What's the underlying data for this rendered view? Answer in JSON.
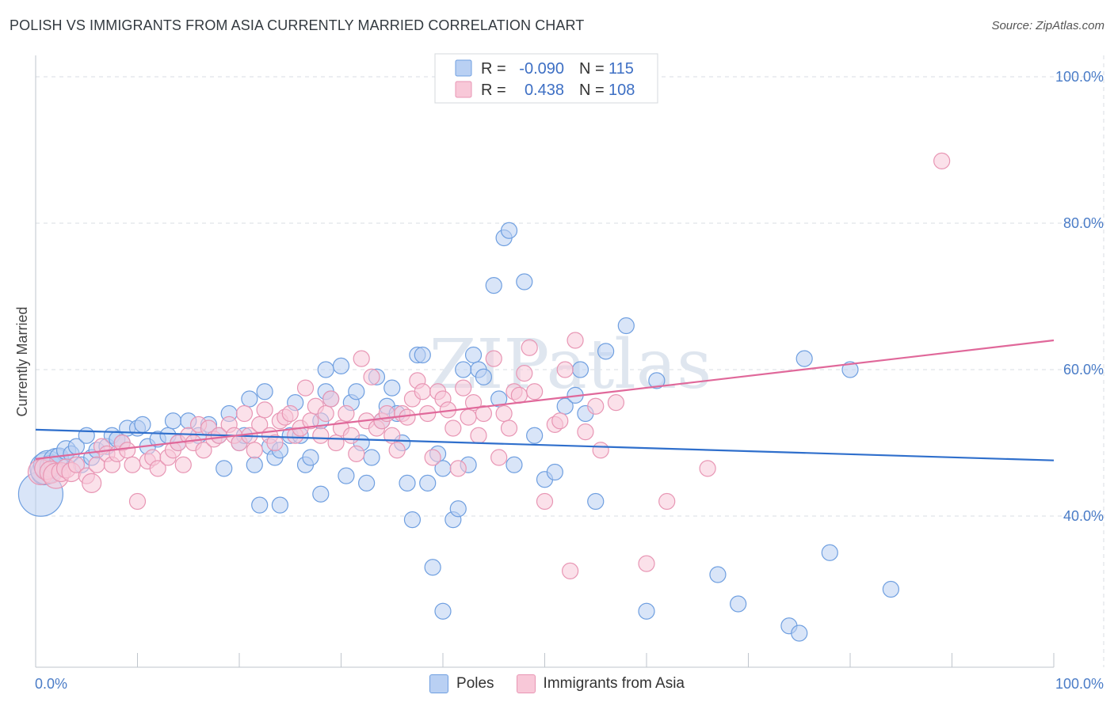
{
  "title": "POLISH VS IMMIGRANTS FROM ASIA CURRENTLY MARRIED CORRELATION CHART",
  "source": "Source: ZipAtlas.com",
  "watermark": "ZIPatlas",
  "chart_data": {
    "type": "scatter",
    "xlabel": "",
    "ylabel": "Currently Married",
    "xlim": [
      0,
      100
    ],
    "ylim": [
      22,
      100
    ],
    "x_tick_labels": [
      "0.0%",
      "100.0%"
    ],
    "y_ticks": [
      40,
      60,
      80,
      100
    ],
    "y_tick_labels": [
      "40.0%",
      "60.0%",
      "80.0%",
      "100.0%"
    ],
    "grid": true,
    "legend_stats": [
      {
        "r_label": "R =",
        "r": "-0.090",
        "n_label": "N =",
        "n": "115",
        "color": "#6f9fe0",
        "fill": "#b9d0f3"
      },
      {
        "r_label": "R =",
        "r": "0.438",
        "n_label": "N =",
        "n": "108",
        "color": "#e896b4",
        "fill": "#f8c8d8"
      }
    ],
    "series": [
      {
        "name": "Poles",
        "color": "#6f9fe0",
        "fill": "#b9d0f3",
        "trend": {
          "x": [
            0,
            100
          ],
          "y": [
            51.8,
            47.6
          ],
          "color": "#2f6fcc"
        },
        "points": [
          [
            0.5,
            43,
            28
          ],
          [
            0.8,
            46,
            16
          ],
          [
            1,
            46.5,
            20
          ],
          [
            1.2,
            47,
            18
          ],
          [
            1.5,
            46.8,
            14
          ],
          [
            2,
            47.5,
            16
          ],
          [
            2.3,
            48,
            12
          ],
          [
            3,
            49,
            12
          ],
          [
            3.5,
            48.5,
            10
          ],
          [
            4,
            49.5,
            10
          ],
          [
            4.5,
            47,
            10
          ],
          [
            5,
            51,
            10
          ],
          [
            5.5,
            48,
            10
          ],
          [
            6,
            49,
            10
          ],
          [
            7,
            49.5,
            10
          ],
          [
            7.5,
            51,
            10
          ],
          [
            8,
            50.5,
            10
          ],
          [
            8.5,
            50,
            10
          ],
          [
            9,
            52,
            10
          ],
          [
            10,
            52,
            10
          ],
          [
            10.5,
            52.5,
            10
          ],
          [
            11,
            49.5,
            10
          ],
          [
            12,
            50.5,
            10
          ],
          [
            13,
            51,
            10
          ],
          [
            13.5,
            53,
            10
          ],
          [
            14,
            50,
            10
          ],
          [
            15,
            53,
            10
          ],
          [
            16,
            51,
            10
          ],
          [
            17,
            52.5,
            10
          ],
          [
            18,
            51,
            10
          ],
          [
            18.5,
            46.5,
            10
          ],
          [
            19,
            54,
            10
          ],
          [
            20,
            50,
            10
          ],
          [
            20.5,
            51,
            10
          ],
          [
            21,
            56,
            10
          ],
          [
            21.5,
            47,
            10
          ],
          [
            22,
            41.5,
            10
          ],
          [
            22.5,
            57,
            10
          ],
          [
            23,
            49.5,
            10
          ],
          [
            23.5,
            48,
            10
          ],
          [
            24,
            41.5,
            10
          ],
          [
            24,
            49,
            10
          ],
          [
            25,
            51,
            10
          ],
          [
            25.5,
            55.5,
            10
          ],
          [
            26,
            51,
            10
          ],
          [
            26.5,
            47,
            10
          ],
          [
            27,
            48,
            10
          ],
          [
            28,
            43,
            10
          ],
          [
            28,
            53,
            10
          ],
          [
            28.5,
            57,
            10
          ],
          [
            29,
            56,
            10
          ],
          [
            28.5,
            60,
            10
          ],
          [
            30,
            60.5,
            10
          ],
          [
            30.5,
            45.5,
            10
          ],
          [
            31,
            55.5,
            10
          ],
          [
            31.5,
            57,
            10
          ],
          [
            32,
            50,
            10
          ],
          [
            32.5,
            44.5,
            10
          ],
          [
            33,
            48,
            10
          ],
          [
            33.5,
            59,
            10
          ],
          [
            34,
            53,
            10
          ],
          [
            34.5,
            55,
            10
          ],
          [
            35,
            57.5,
            10
          ],
          [
            35.5,
            54,
            10
          ],
          [
            36,
            50,
            10
          ],
          [
            36.5,
            44.5,
            10
          ],
          [
            37,
            39.5,
            10
          ],
          [
            37.5,
            62,
            10
          ],
          [
            38,
            62,
            10
          ],
          [
            38.5,
            44.5,
            10
          ],
          [
            39,
            33,
            10
          ],
          [
            39.5,
            48.5,
            10
          ],
          [
            40,
            46.5,
            10
          ],
          [
            40,
            27,
            10
          ],
          [
            41,
            39.5,
            10
          ],
          [
            41.5,
            41,
            10
          ],
          [
            42,
            60,
            10
          ],
          [
            42.5,
            47,
            10
          ],
          [
            43,
            62,
            10
          ],
          [
            43.5,
            60,
            10
          ],
          [
            44,
            59,
            10
          ],
          [
            45,
            71.5,
            10
          ],
          [
            45.5,
            56,
            10
          ],
          [
            46,
            78,
            10
          ],
          [
            46.5,
            79,
            10
          ],
          [
            47,
            47,
            10
          ],
          [
            48,
            72,
            10
          ],
          [
            49,
            51,
            10
          ],
          [
            50,
            45,
            10
          ],
          [
            51,
            46,
            10
          ],
          [
            52,
            55,
            10
          ],
          [
            53,
            56.5,
            10
          ],
          [
            53.5,
            60,
            10
          ],
          [
            54,
            54,
            10
          ],
          [
            55,
            42,
            10
          ],
          [
            56,
            62.5,
            10
          ],
          [
            58,
            66,
            10
          ],
          [
            60,
            27,
            10
          ],
          [
            61,
            58.5,
            10
          ],
          [
            67,
            32,
            10
          ],
          [
            69,
            28,
            10
          ],
          [
            74,
            25,
            10
          ],
          [
            75,
            24,
            10
          ],
          [
            75.5,
            61.5,
            10
          ],
          [
            78,
            35,
            10
          ],
          [
            80,
            60,
            10
          ],
          [
            84,
            30,
            10
          ]
        ]
      },
      {
        "name": "Immigrants from Asia",
        "color": "#e896b4",
        "fill": "#f8c8d8",
        "trend": {
          "x": [
            0,
            100
          ],
          "y": [
            47.8,
            64
          ],
          "color": "#e0689a"
        },
        "points": [
          [
            0.5,
            46,
            16
          ],
          [
            1,
            46.5,
            14
          ],
          [
            1.5,
            46,
            14
          ],
          [
            2,
            45.5,
            16
          ],
          [
            2.5,
            46,
            12
          ],
          [
            3,
            46.5,
            12
          ],
          [
            3.5,
            46,
            12
          ],
          [
            4,
            47,
            10
          ],
          [
            5,
            45.5,
            10
          ],
          [
            5.5,
            44.5,
            12
          ],
          [
            6,
            47,
            10
          ],
          [
            6.5,
            49.5,
            10
          ],
          [
            7,
            48.5,
            10
          ],
          [
            7.5,
            47,
            10
          ],
          [
            8,
            48.5,
            10
          ],
          [
            8.5,
            50,
            10
          ],
          [
            9,
            49,
            10
          ],
          [
            9.5,
            47,
            10
          ],
          [
            10,
            42,
            10
          ],
          [
            11,
            47.5,
            10
          ],
          [
            11.5,
            48,
            10
          ],
          [
            12,
            46.5,
            10
          ],
          [
            13,
            48,
            10
          ],
          [
            13.5,
            49,
            10
          ],
          [
            14,
            50,
            10
          ],
          [
            14.5,
            47,
            10
          ],
          [
            15,
            51,
            10
          ],
          [
            15.5,
            50,
            10
          ],
          [
            16,
            52.5,
            10
          ],
          [
            16.5,
            49,
            10
          ],
          [
            17,
            52,
            10
          ],
          [
            17.5,
            50.5,
            10
          ],
          [
            18,
            51,
            10
          ],
          [
            19,
            52.5,
            10
          ],
          [
            19.5,
            51,
            10
          ],
          [
            20,
            50,
            10
          ],
          [
            20.5,
            54,
            10
          ],
          [
            21,
            51,
            10
          ],
          [
            21.5,
            49,
            10
          ],
          [
            22,
            52.5,
            10
          ],
          [
            22.5,
            54.5,
            10
          ],
          [
            23,
            51,
            10
          ],
          [
            23.5,
            50,
            10
          ],
          [
            24,
            53,
            10
          ],
          [
            24.5,
            53.5,
            10
          ],
          [
            25,
            54,
            10
          ],
          [
            25.5,
            51,
            10
          ],
          [
            26,
            52,
            10
          ],
          [
            26.5,
            57.5,
            10
          ],
          [
            27,
            53,
            10
          ],
          [
            27.5,
            55,
            10
          ],
          [
            28,
            51,
            10
          ],
          [
            28.5,
            54,
            10
          ],
          [
            29,
            56,
            10
          ],
          [
            29.5,
            50,
            10
          ],
          [
            30,
            52,
            10
          ],
          [
            30.5,
            54,
            10
          ],
          [
            31,
            51,
            10
          ],
          [
            31.5,
            48.5,
            10
          ],
          [
            32,
            61.5,
            10
          ],
          [
            32.5,
            53,
            10
          ],
          [
            33,
            59,
            10
          ],
          [
            33.5,
            52,
            10
          ],
          [
            34,
            53,
            10
          ],
          [
            34.5,
            54,
            10
          ],
          [
            35,
            51,
            10
          ],
          [
            35.5,
            49,
            10
          ],
          [
            36,
            54,
            10
          ],
          [
            36.5,
            53.5,
            10
          ],
          [
            37,
            56,
            10
          ],
          [
            37.5,
            58.5,
            10
          ],
          [
            38,
            57,
            10
          ],
          [
            38.5,
            54,
            10
          ],
          [
            39,
            48,
            10
          ],
          [
            39.5,
            57,
            10
          ],
          [
            40,
            56,
            10
          ],
          [
            40.5,
            54.5,
            10
          ],
          [
            41,
            52,
            10
          ],
          [
            41.5,
            46.5,
            10
          ],
          [
            42,
            57.5,
            10
          ],
          [
            42.5,
            53.5,
            10
          ],
          [
            43,
            55.5,
            10
          ],
          [
            43.5,
            51,
            10
          ],
          [
            44,
            54,
            10
          ],
          [
            45,
            61.5,
            10
          ],
          [
            45.5,
            48,
            10
          ],
          [
            46,
            54,
            10
          ],
          [
            46.5,
            52,
            10
          ],
          [
            47,
            57,
            10
          ],
          [
            47.5,
            56.5,
            10
          ],
          [
            48,
            59.5,
            10
          ],
          [
            48.5,
            63,
            10
          ],
          [
            49,
            57,
            10
          ],
          [
            50,
            42,
            10
          ],
          [
            51,
            52.5,
            10
          ],
          [
            51.5,
            53,
            10
          ],
          [
            52,
            60,
            10
          ],
          [
            52.5,
            32.5,
            10
          ],
          [
            53,
            64,
            10
          ],
          [
            54,
            51.5,
            10
          ],
          [
            55,
            55,
            10
          ],
          [
            55.5,
            49,
            10
          ],
          [
            57,
            55.5,
            10
          ],
          [
            60,
            33.5,
            10
          ],
          [
            62,
            42,
            10
          ],
          [
            66,
            46.5,
            10
          ],
          [
            89,
            88.5,
            10
          ]
        ]
      }
    ]
  },
  "legend_bottom": [
    {
      "label": "Poles",
      "fill": "#b9d0f3",
      "stroke": "#6f9fe0"
    },
    {
      "label": "Immigrants from Asia",
      "fill": "#f8c8d8",
      "stroke": "#e896b4"
    }
  ]
}
